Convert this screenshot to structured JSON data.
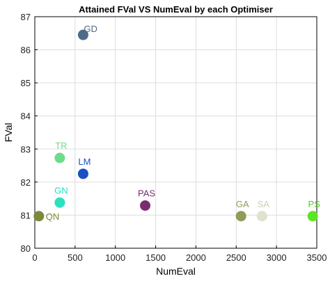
{
  "chart_data": {
    "type": "scatter",
    "title": "Attained FVal VS NumEval by each Optimiser",
    "xlabel": "NumEval",
    "ylabel": "FVal",
    "xlim": [
      0,
      3500
    ],
    "ylim": [
      80,
      87
    ],
    "xticks": [
      0,
      500,
      1000,
      1500,
      2000,
      2500,
      3000,
      3500
    ],
    "yticks": [
      80,
      81,
      82,
      83,
      84,
      85,
      86,
      87
    ],
    "grid": true,
    "points": [
      {
        "label": "GD",
        "x": 600,
        "y": 86.45,
        "color": "#4f6a86",
        "label_color": "#4f6a86"
      },
      {
        "label": "TR",
        "x": 310,
        "y": 82.73,
        "color": "#6fdc8c",
        "label_color": "#6fdc8c"
      },
      {
        "label": "LM",
        "x": 600,
        "y": 82.25,
        "color": "#1b4fc4",
        "label_color": "#1b4fc4"
      },
      {
        "label": "GN",
        "x": 310,
        "y": 81.38,
        "color": "#2de0c0",
        "label_color": "#2de0c0"
      },
      {
        "label": "QN",
        "x": 50,
        "y": 80.97,
        "color": "#7a8a3a",
        "label_color": "#7a8a3a"
      },
      {
        "label": "PAS",
        "x": 1370,
        "y": 81.29,
        "color": "#7a2c72",
        "label_color": "#7a2c72"
      },
      {
        "label": "GA",
        "x": 2560,
        "y": 80.97,
        "color": "#8f9c5a",
        "label_color": "#8f9c5a"
      },
      {
        "label": "SA",
        "x": 2820,
        "y": 80.97,
        "color": "#dde3cc",
        "label_color": "#c8d0b4"
      },
      {
        "label": "PS",
        "x": 3450,
        "y": 80.97,
        "color": "#5be624",
        "label_color": "#4fd01a"
      }
    ]
  }
}
